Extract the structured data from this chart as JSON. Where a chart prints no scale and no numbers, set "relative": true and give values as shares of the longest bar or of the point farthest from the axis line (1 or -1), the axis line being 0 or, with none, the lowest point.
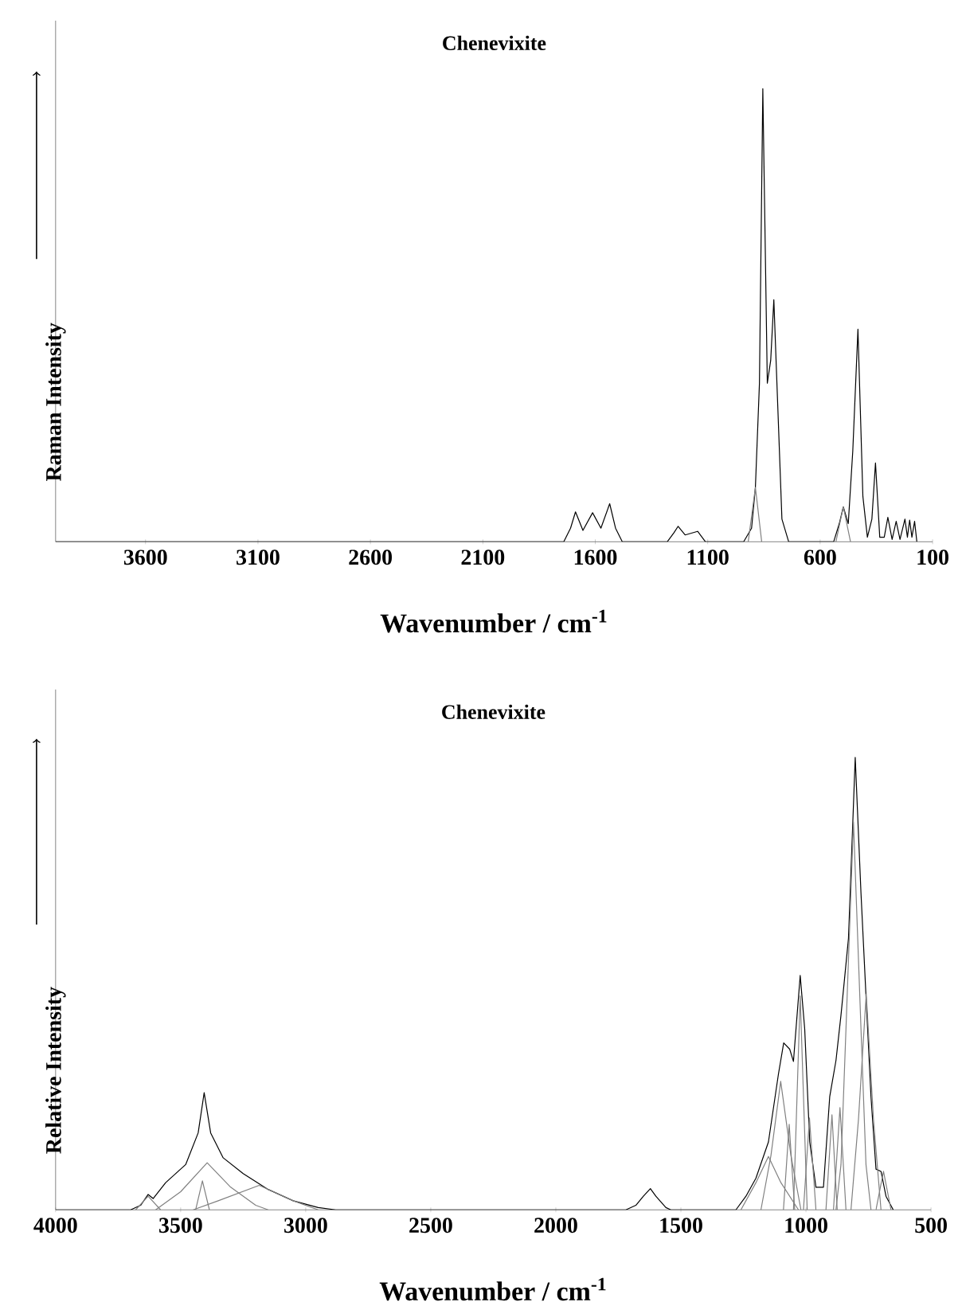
{
  "chart_data": [
    {
      "type": "line",
      "title": "Chenevixite",
      "xlabel": "Wavenumber / cm$^{-1}$",
      "ylabel": "Raman Intensity",
      "relative": true,
      "xlim": [
        4000,
        100
      ],
      "xticks": [
        3600,
        3100,
        2600,
        2100,
        1600,
        1100,
        600,
        100
      ],
      "series": [
        {
          "color": "#000000",
          "x": [
            4000,
            1740,
            1710,
            1688,
            1655,
            1612,
            1575,
            1536,
            1510,
            1480,
            1280,
            1250,
            1232,
            1200,
            1145,
            1110,
            940,
            905,
            888,
            870,
            855,
            835,
            820,
            806,
            770,
            740,
            540,
            515,
            497,
            475,
            455,
            432,
            410,
            390,
            370,
            354,
            335,
            315,
            299,
            280,
            262,
            245,
            223,
            212,
            202,
            192,
            180,
            170
          ],
          "values": [
            0,
            0,
            0.03,
            0.066,
            0.025,
            0.064,
            0.03,
            0.084,
            0.03,
            0,
            0,
            0.02,
            0.034,
            0.015,
            0.023,
            0,
            0,
            0.03,
            0.12,
            0.35,
            1,
            0.35,
            0.4,
            0.534,
            0.05,
            0,
            0,
            0.04,
            0.077,
            0.04,
            0.2,
            0.469,
            0.1,
            0.01,
            0.05,
            0.174,
            0.01,
            0.01,
            0.054,
            0.005,
            0.045,
            0.005,
            0.05,
            0.01,
            0.048,
            0.01,
            0.045,
            0
          ]
        },
        {
          "color": "#808080",
          "x": [
            920,
            888,
            860
          ],
          "values": [
            0,
            0.12,
            0
          ]
        },
        {
          "color": "#808080",
          "x": [
            530,
            497,
            465
          ],
          "values": [
            0,
            0.077,
            0
          ]
        }
      ]
    },
    {
      "type": "line",
      "title": "Chenevixite",
      "xlabel": "Wavenumber / cm$^{-1}$",
      "ylabel": "Relative Intensity",
      "relative": true,
      "xlim": [
        4000,
        500
      ],
      "xticks": [
        4000,
        3500,
        3000,
        2500,
        2000,
        1500,
        1000,
        500
      ],
      "series": [
        {
          "color": "#000000",
          "x": [
            4000,
            3700,
            3660,
            3630,
            3610,
            3560,
            3480,
            3430,
            3406,
            3380,
            3330,
            3250,
            3150,
            3050,
            2950,
            2880,
            1720,
            1680,
            1650,
            1622,
            1600,
            1560,
            1540,
            1280,
            1240,
            1200,
            1150,
            1110,
            1089,
            1065,
            1050,
            1023,
            1005,
            985,
            960,
            930,
            905,
            880,
            860,
            830,
            803,
            780,
            760,
            740,
            720,
            700,
            680,
            651
          ],
          "values": [
            0,
            0,
            0.01,
            0.034,
            0.025,
            0.06,
            0.1,
            0.17,
            0.259,
            0.17,
            0.115,
            0.08,
            0.045,
            0.02,
            0.005,
            0,
            0,
            0.01,
            0.03,
            0.047,
            0.03,
            0.005,
            0,
            0,
            0.03,
            0.07,
            0.15,
            0.3,
            0.369,
            0.355,
            0.328,
            0.518,
            0.4,
            0.15,
            0.05,
            0.05,
            0.25,
            0.33,
            0.43,
            0.6,
            1,
            0.7,
            0.473,
            0.25,
            0.09,
            0.085,
            0.03,
            0
          ]
        },
        {
          "color": "#808080",
          "x": [
            3600,
            3500,
            3394,
            3300,
            3200,
            3150
          ],
          "values": [
            0,
            0.04,
            0.104,
            0.05,
            0.01,
            0
          ]
        },
        {
          "color": "#808080",
          "x": [
            3450,
            3350,
            3186,
            3050,
            2950
          ],
          "values": [
            0,
            0.02,
            0.054,
            0.02,
            0
          ]
        },
        {
          "color": "#808080",
          "x": [
            3440,
            3413,
            3385
          ],
          "values": [
            0,
            0.064,
            0
          ]
        },
        {
          "color": "#808080",
          "x": [
            3680,
            3630,
            3580
          ],
          "values": [
            0,
            0.03,
            0
          ]
        },
        {
          "color": "#808080",
          "x": [
            1260,
            1200,
            1150,
            1100,
            1030
          ],
          "values": [
            0,
            0.06,
            0.118,
            0.06,
            0
          ]
        },
        {
          "color": "#808080",
          "x": [
            1180,
            1140,
            1101,
            1060,
            1020
          ],
          "values": [
            0,
            0.12,
            0.284,
            0.12,
            0
          ]
        },
        {
          "color": "#808080",
          "x": [
            1090,
            1067,
            1045
          ],
          "values": [
            0,
            0.189,
            0
          ]
        },
        {
          "color": "#808080",
          "x": [
            1050,
            1023,
            995
          ],
          "values": [
            0,
            0.473,
            0
          ]
        },
        {
          "color": "#808080",
          "x": [
            1010,
            986,
            960
          ],
          "values": [
            0,
            0.203,
            0
          ]
        },
        {
          "color": "#808080",
          "x": [
            920,
            896,
            875
          ],
          "values": [
            0,
            0.21,
            0
          ]
        },
        {
          "color": "#808080",
          "x": [
            890,
            864,
            840
          ],
          "values": [
            0,
            0.226,
            0
          ]
        },
        {
          "color": "#808080",
          "x": [
            880,
            860,
            840,
            810,
            780,
            760,
            740
          ],
          "values": [
            0,
            0.1,
            0.4,
            0.858,
            0.4,
            0.1,
            0
          ]
        },
        {
          "color": "#808080",
          "x": [
            820,
            790,
            759,
            730,
            700
          ],
          "values": [
            0,
            0.2,
            0.477,
            0.2,
            0
          ]
        },
        {
          "color": "#808080",
          "x": [
            720,
            690,
            660
          ],
          "values": [
            0,
            0.085,
            0
          ]
        }
      ]
    }
  ]
}
